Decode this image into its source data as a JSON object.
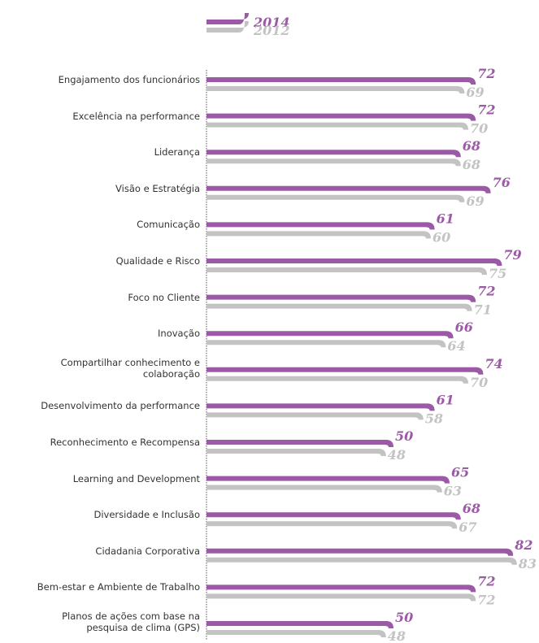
{
  "colors": {
    "series_2014": "#9B5AA5",
    "series_2012": "#C3C3C3",
    "axis": "#555555",
    "label": "#333333"
  },
  "legend": {
    "items": [
      {
        "label": "2014",
        "color": "#9B5AA5"
      },
      {
        "label": "2012",
        "color": "#C3C3C3"
      }
    ]
  },
  "chart_data": {
    "type": "bar",
    "orientation": "horizontal",
    "categories": [
      "Engajamento dos funcionários",
      "Excelência na performance",
      "Liderança",
      "Visão e Estratégia",
      "Comunicação",
      "Qualidade e Risco",
      "Foco no Cliente",
      "Inovação",
      "Compartilhar conhecimento e colaboração",
      "Desenvolvimento da performance",
      "Reconhecimento e Recompensa",
      "Learning and Development",
      "Diversidade e Inclusão",
      "Cidadania Corporativa",
      "Bem-estar e Ambiente de Trabalho",
      "Planos de ações com base na pesquisa de clima (GPS)"
    ],
    "series": [
      {
        "name": "2014",
        "values": [
          72,
          72,
          68,
          76,
          61,
          79,
          72,
          66,
          74,
          61,
          50,
          65,
          68,
          82,
          72,
          50
        ]
      },
      {
        "name": "2012",
        "values": [
          69,
          70,
          68,
          69,
          60,
          75,
          71,
          64,
          70,
          58,
          48,
          63,
          67,
          83,
          72,
          48
        ]
      }
    ],
    "title": "",
    "xlabel": "",
    "ylabel": "",
    "xlim": [
      0,
      85
    ],
    "grid": false,
    "legend_position": "top-left"
  }
}
